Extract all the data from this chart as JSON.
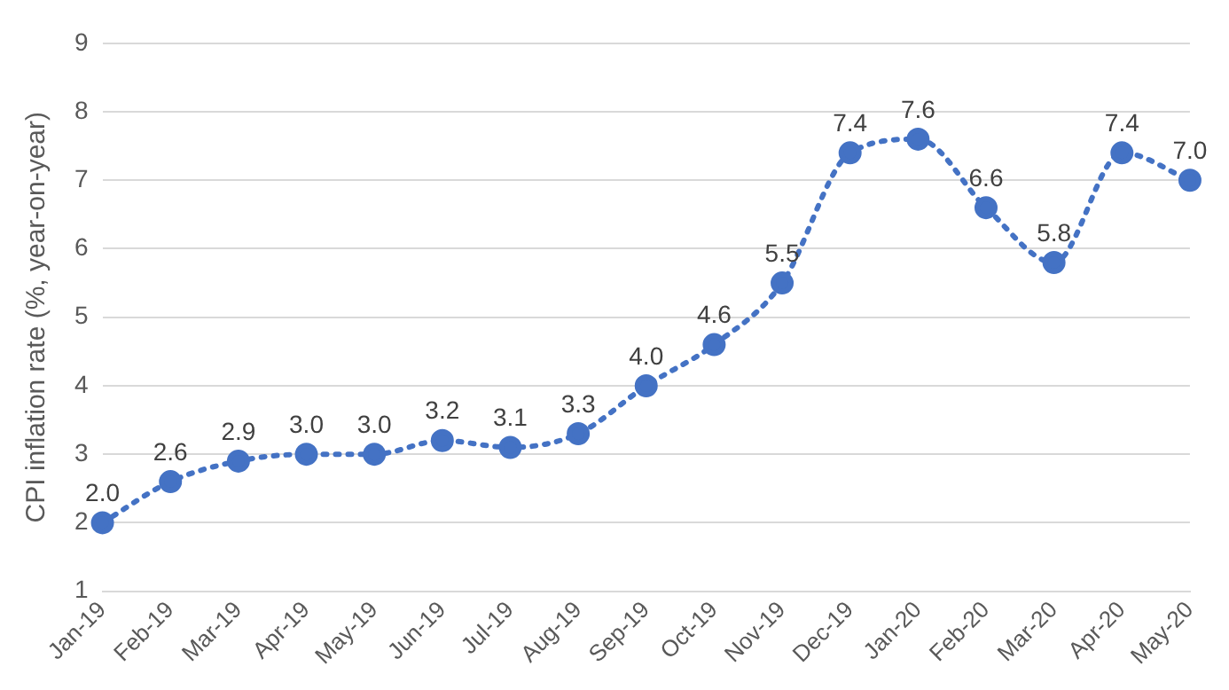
{
  "chart_data": {
    "type": "line",
    "ylabel": "CPI inflation rate (%, year-on-year)",
    "categories": [
      "Jan-19",
      "Feb-19",
      "Mar-19",
      "Apr-19",
      "May-19",
      "Jun-19",
      "Jul-19",
      "Aug-19",
      "Sep-19",
      "Oct-19",
      "Nov-19",
      "Dec-19",
      "Jan-20",
      "Feb-20",
      "Mar-20",
      "Apr-20",
      "May-20"
    ],
    "series": [
      {
        "color": "#4472c4",
        "values": [
          2.0,
          2.6,
          2.9,
          3.0,
          3.0,
          3.2,
          3.1,
          3.3,
          4.0,
          4.6,
          5.5,
          7.4,
          7.6,
          6.6,
          5.8,
          7.4,
          7.0
        ],
        "value_labels": [
          "2.0",
          "2.6",
          "2.9",
          "3.0",
          "3.0",
          "3.2",
          "3.1",
          "3.3",
          "4.0",
          "4.6",
          "5.5",
          "7.4",
          "7.6",
          "6.6",
          "5.8",
          "7.4",
          "7.0"
        ]
      }
    ],
    "ylim": [
      1,
      9
    ],
    "yticks": [
      1,
      2,
      3,
      4,
      5,
      6,
      7,
      8,
      9
    ],
    "grid": "y",
    "legend": false,
    "marker": "circle",
    "line_style": "dotted"
  }
}
